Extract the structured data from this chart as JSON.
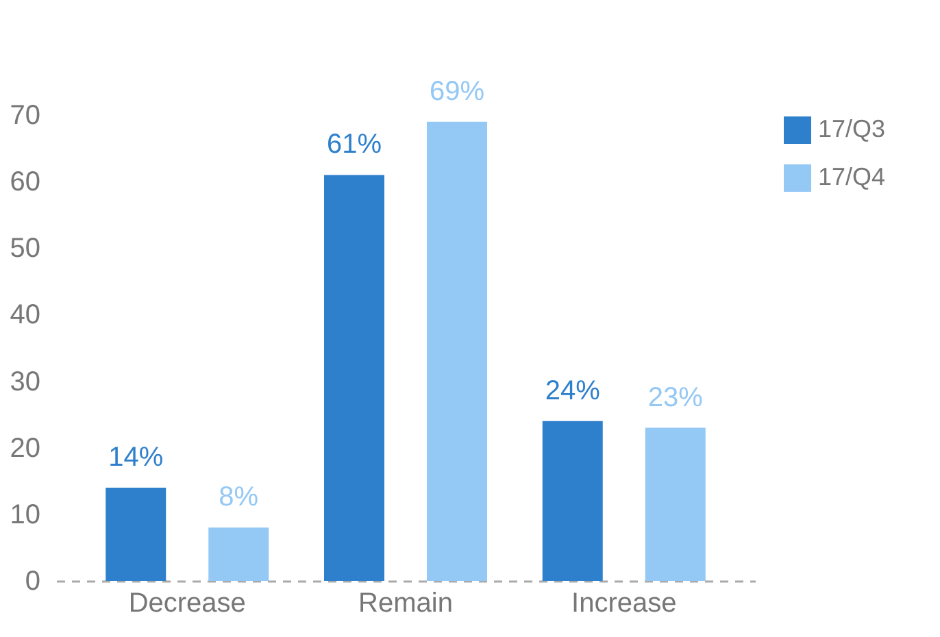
{
  "chart_data": {
    "type": "bar",
    "categories": [
      "Decrease",
      "Remain",
      "Increase"
    ],
    "series": [
      {
        "name": "17/Q3",
        "color": "#2f80cc",
        "values": [
          14,
          61,
          24
        ],
        "value_labels": [
          "14%",
          "61%",
          "24%"
        ]
      },
      {
        "name": "17/Q4",
        "color": "#94c8f5",
        "values": [
          8,
          69,
          23
        ],
        "value_labels": [
          "8%",
          "69%",
          "23%"
        ]
      }
    ],
    "ylim": [
      0,
      70
    ],
    "yticks": [
      0,
      10,
      20,
      30,
      40,
      50,
      60,
      70
    ],
    "grid": false,
    "legend": "top right"
  }
}
